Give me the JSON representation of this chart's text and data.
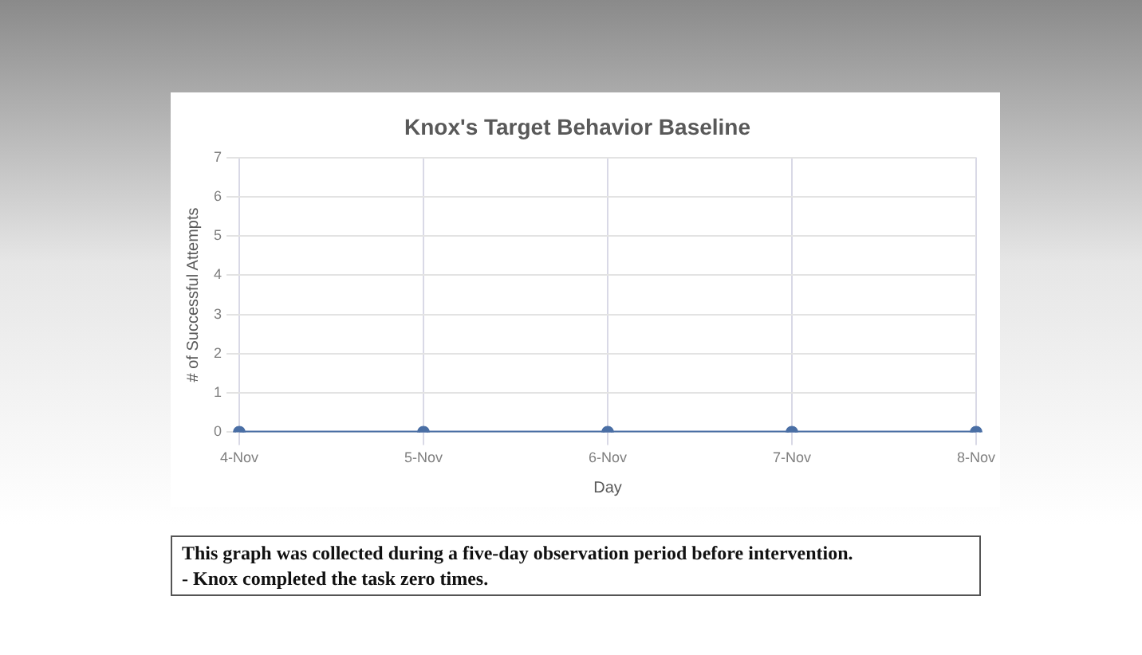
{
  "chart_data": {
    "type": "line",
    "title": "Knox's Target Behavior Baseline",
    "xlabel": "Day",
    "ylabel": "# of Successful Attempts",
    "categories": [
      "4-Nov",
      "5-Nov",
      "6-Nov",
      "7-Nov",
      "8-Nov"
    ],
    "series": [
      {
        "color": "#4a6fa5",
        "values": [
          0,
          0,
          0,
          0,
          0
        ]
      }
    ],
    "ylim": [
      0,
      7
    ],
    "yticks": [
      0,
      1,
      2,
      3,
      4,
      5,
      6,
      7
    ],
    "grid": true,
    "legend": false,
    "marker": "circle",
    "line_style": "solid",
    "annotations": [
      "This graph was collected during a five-day observation period before intervention.",
      "- Knox completed the task zero times."
    ]
  }
}
